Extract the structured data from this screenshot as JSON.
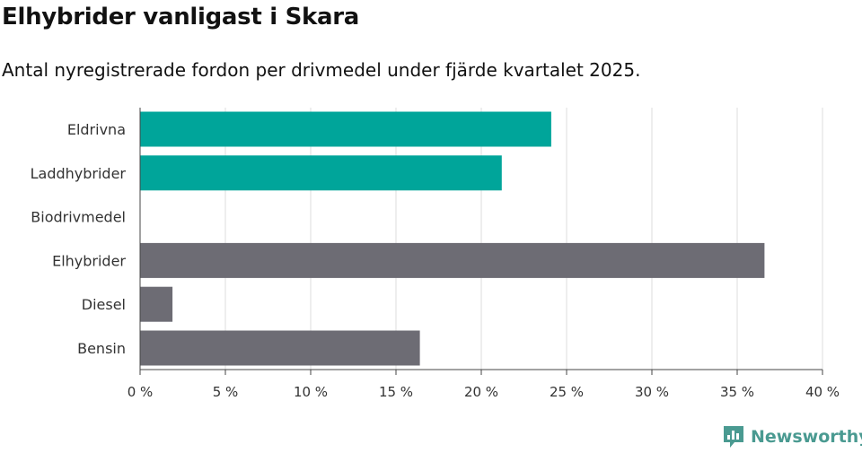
{
  "header": {
    "title": "Elhybrider vanligast i Skara",
    "subtitle": "Antal nyregistrerade fordon per drivmedel under fjärde kvartalet 2025."
  },
  "brand": {
    "name": "Newsworthy",
    "icon": "newsworthy-logo-icon",
    "color": "#4a9a91"
  },
  "chart_data": {
    "type": "bar",
    "orientation": "horizontal",
    "categories": [
      "Eldrivna",
      "Laddhybrider",
      "Biodrivmedel",
      "Elhybrider",
      "Diesel",
      "Bensin"
    ],
    "values": [
      24.1,
      21.2,
      0,
      36.6,
      1.9,
      16.4
    ],
    "colors": [
      "#00a59a",
      "#00a59a",
      "#00a59a",
      "#6d6c74",
      "#6d6c74",
      "#6d6c74"
    ],
    "xlim": [
      0,
      40
    ],
    "xticks": [
      0,
      5,
      10,
      15,
      20,
      25,
      30,
      35,
      40
    ],
    "xtick_labels": [
      "0 %",
      "5 %",
      "10 %",
      "15 %",
      "20 %",
      "25 %",
      "30 %",
      "35 %",
      "40 %"
    ],
    "xlabel": "",
    "ylabel": "",
    "grid": true
  }
}
